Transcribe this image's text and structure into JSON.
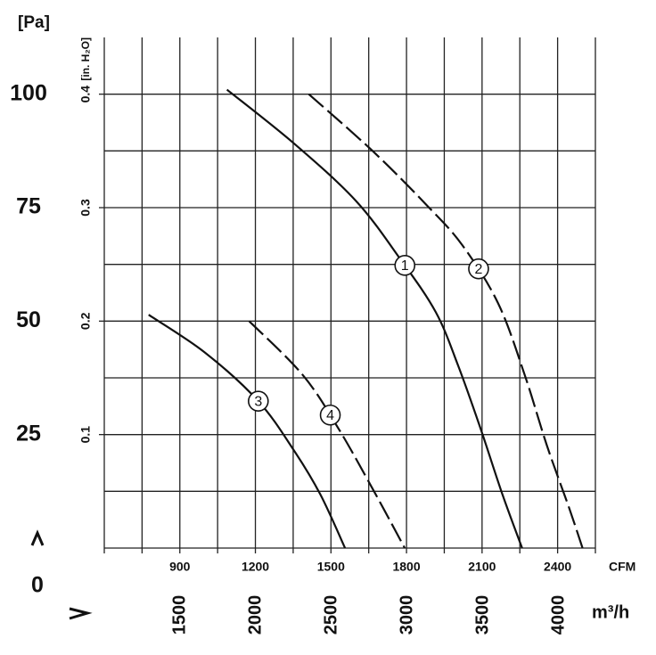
{
  "chart_data": {
    "type": "line",
    "y_label": "[Pa]",
    "y2_label": "[in. H₂O]",
    "x_label": "CFM",
    "x2_label": "m³/h",
    "origin_label": "0",
    "xlim": [
      600,
      2550
    ],
    "xticks": [
      900,
      1200,
      1500,
      1800,
      2100,
      2400
    ],
    "x2lim": [
      1000,
      4240
    ],
    "x2ticks": [
      1500,
      2000,
      2500,
      3000,
      3500,
      4000
    ],
    "ylim": [
      0,
      112.5
    ],
    "yticks": [
      25,
      50,
      75,
      100
    ],
    "y2lim": [
      0,
      0.45
    ],
    "y2ticks": [
      0.1,
      0.2,
      0.3,
      0.4
    ],
    "xgrid": [
      600,
      750,
      900,
      1050,
      1200,
      1350,
      1500,
      1650,
      1800,
      1950,
      2100,
      2250,
      2400,
      2550
    ],
    "ygrid": [
      0,
      12.5,
      25,
      37.5,
      50,
      62.5,
      75,
      87.5,
      100
    ],
    "grid": true,
    "series": [
      {
        "name": "1",
        "color": "#111111",
        "dashed": false,
        "x": [
          1087,
          1352,
          1599,
          1775,
          1916,
          2005,
          2093,
          2181,
          2259
        ],
        "values": [
          101,
          89.2,
          76.5,
          63.7,
          52,
          40.2,
          26.5,
          11.8,
          0
        ]
      },
      {
        "name": "2",
        "color": "#111111",
        "dashed": true,
        "x": [
          1412,
          1669,
          1881,
          2022,
          2164,
          2269,
          2358,
          2446,
          2499
        ],
        "values": [
          100,
          87.3,
          75.5,
          66.7,
          53.9,
          38.2,
          22.5,
          8.8,
          0
        ]
      },
      {
        "name": "3",
        "color": "#111111",
        "dashed": false,
        "x": [
          776,
          999,
          1211,
          1352,
          1458,
          1556
        ],
        "values": [
          51.4,
          43.1,
          32.4,
          21.6,
          11.8,
          0
        ]
      },
      {
        "name": "4",
        "color": "#111111",
        "dashed": true,
        "x": [
          1175,
          1387,
          1528,
          1669,
          1793
        ],
        "values": [
          50,
          38.2,
          26.5,
          12.7,
          0
        ]
      }
    ]
  }
}
